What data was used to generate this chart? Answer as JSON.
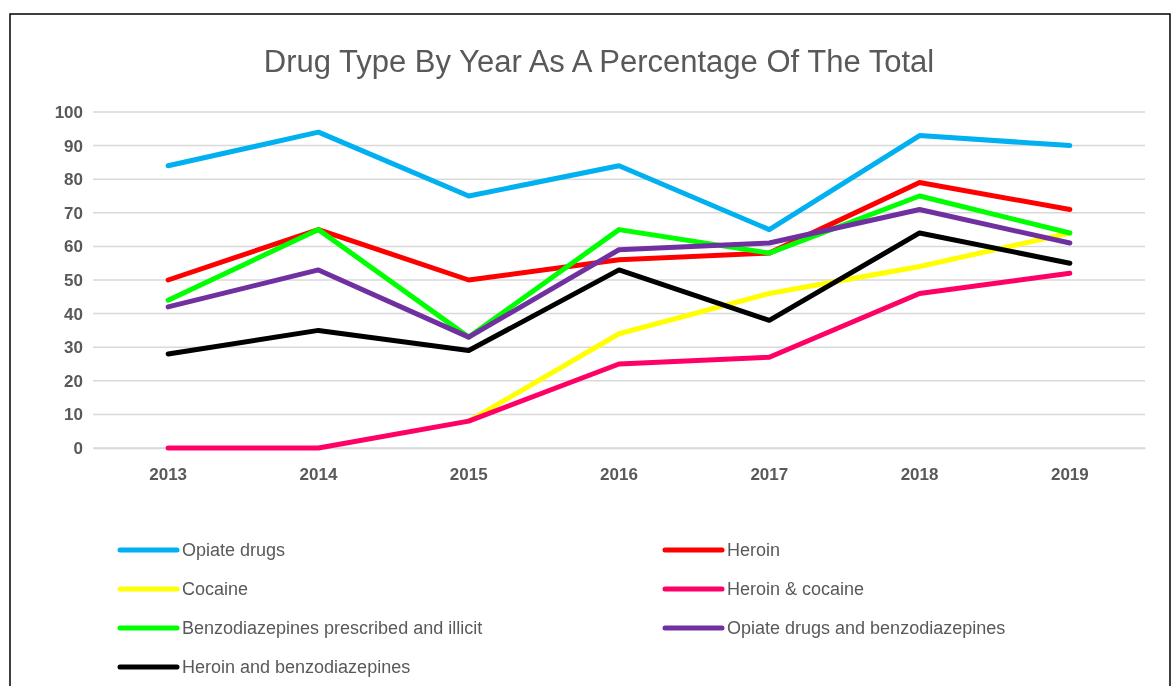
{
  "chart_data": {
    "type": "line",
    "title": "Drug Type By Year As A Percentage Of The Total",
    "categories": [
      "2013",
      "2014",
      "2015",
      "2016",
      "2017",
      "2018",
      "2019"
    ],
    "ylim": [
      0,
      100
    ],
    "yticks": [
      0,
      10,
      20,
      30,
      40,
      50,
      60,
      70,
      80,
      90,
      100
    ],
    "grid": "y",
    "legend": "bottom",
    "marker": "none",
    "line_style": "solid",
    "series": [
      {
        "name": "Opiate drugs",
        "color": "#00b0f0",
        "values": [
          84,
          94,
          75,
          84,
          65,
          93,
          90
        ]
      },
      {
        "name": "Heroin",
        "color": "#ff0000",
        "values": [
          50,
          65,
          50,
          56,
          58,
          79,
          71
        ]
      },
      {
        "name": "Cocaine",
        "color": "#ffff00",
        "values": [
          null,
          null,
          8,
          34,
          46,
          54,
          64
        ]
      },
      {
        "name": "Heroin & cocaine",
        "color": "#ff0066",
        "values": [
          0,
          0,
          8,
          25,
          27,
          46,
          52
        ]
      },
      {
        "name": "Benzodiazepines prescribed and illicit",
        "color": "#00ff00",
        "values": [
          44,
          65,
          33,
          65,
          58,
          75,
          64
        ]
      },
      {
        "name": "Opiate drugs and benzodiazepines",
        "color": "#7030a0",
        "values": [
          42,
          53,
          33,
          59,
          61,
          71,
          61
        ]
      },
      {
        "name": "Heroin and benzodiazepines",
        "color": "#000000",
        "values": [
          28,
          35,
          29,
          53,
          38,
          64,
          55
        ]
      }
    ]
  }
}
